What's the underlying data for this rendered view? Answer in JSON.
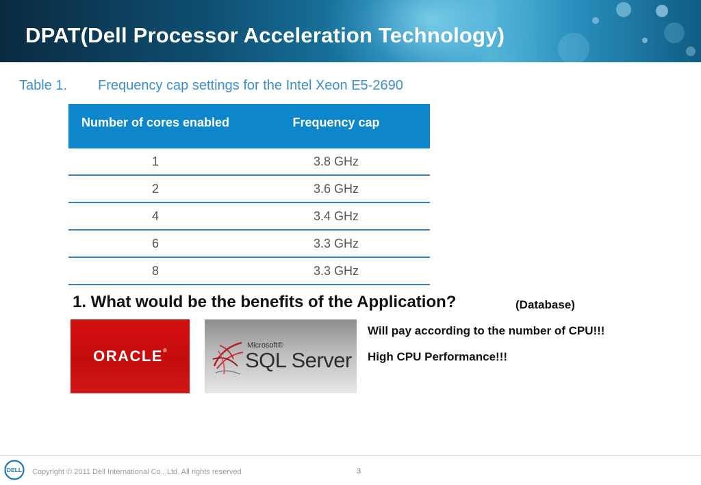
{
  "slide": {
    "title": "DPAT(Dell Processor Acceleration Technology)",
    "caption_number": "Table 1.",
    "caption_text": "Frequency cap settings for the Intel Xeon E5-2690"
  },
  "table": {
    "headers": [
      "Number of cores enabled",
      "Frequency cap"
    ],
    "rows": [
      [
        "1",
        "3.8 GHz"
      ],
      [
        "2",
        "3.6 GHz"
      ],
      [
        "4",
        "3.4 GHz"
      ],
      [
        "6",
        "3.3 GHz"
      ],
      [
        "8",
        "3.3 GHz"
      ]
    ]
  },
  "question": {
    "text": "1. What would be the benefits of the Application?",
    "note": "(Database)"
  },
  "logos": {
    "oracle": "ORACLE",
    "oracle_reg": "®",
    "sql_microsoft": "Microsoft®",
    "sql_name": "SQL Server"
  },
  "benefits": [
    "Will pay according to the number of CPU!!!",
    "High CPU Performance!!!"
  ],
  "footer": {
    "dell_logo": "DELL",
    "copyright": "Copyright © 2011 Dell International Co., Ltd. All rights reserved",
    "page_number": "3"
  },
  "colors": {
    "table_header": "#0d86cc",
    "row_rule": "#2a83c8",
    "caption": "#3a8fcf",
    "oracle_red": "#c40c0c"
  }
}
